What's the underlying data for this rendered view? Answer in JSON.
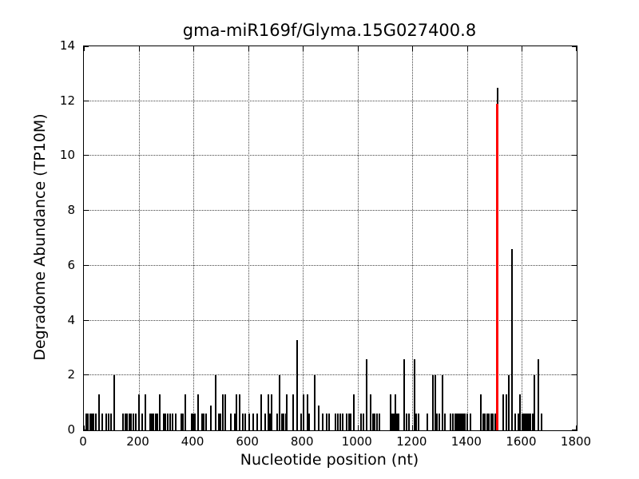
{
  "chart_data": {
    "type": "bar",
    "title": "gma-miR169f/Glyma.15G027400.8",
    "xlabel": "Nucleotide position (nt)",
    "ylabel": "Degradome Abundance (TP10M)",
    "xlim": [
      0,
      1800
    ],
    "ylim": [
      0,
      14
    ],
    "xticks": [
      0,
      200,
      400,
      600,
      800,
      1000,
      1200,
      1400,
      1600,
      1800
    ],
    "yticks": [
      0,
      2,
      4,
      6,
      8,
      10,
      12,
      14
    ],
    "grid": "dotted",
    "bar_color": "#000000",
    "highlight_marker": {
      "x": 1508,
      "height": 11.9,
      "color": "#ff0000"
    },
    "bars": [
      [
        5,
        0.6
      ],
      [
        12,
        0.6
      ],
      [
        19,
        0.6
      ],
      [
        26,
        0.6
      ],
      [
        33,
        0.6
      ],
      [
        40,
        0.6
      ],
      [
        52,
        1.3
      ],
      [
        63,
        0.6
      ],
      [
        78,
        0.6
      ],
      [
        88,
        0.6
      ],
      [
        95,
        0.6
      ],
      [
        108,
        2.0
      ],
      [
        141,
        0.6
      ],
      [
        148,
        0.6
      ],
      [
        155,
        0.6
      ],
      [
        162,
        0.6
      ],
      [
        169,
        0.6
      ],
      [
        178,
        0.6
      ],
      [
        186,
        0.6
      ],
      [
        198,
        1.3
      ],
      [
        210,
        0.6
      ],
      [
        222,
        1.3
      ],
      [
        238,
        0.6
      ],
      [
        245,
        0.6
      ],
      [
        252,
        0.6
      ],
      [
        259,
        0.6
      ],
      [
        266,
        0.6
      ],
      [
        274,
        1.3
      ],
      [
        288,
        0.6
      ],
      [
        296,
        0.6
      ],
      [
        304,
        0.6
      ],
      [
        312,
        0.6
      ],
      [
        322,
        0.6
      ],
      [
        332,
        0.6
      ],
      [
        353,
        0.6
      ],
      [
        360,
        0.6
      ],
      [
        368,
        1.3
      ],
      [
        390,
        0.6
      ],
      [
        397,
        0.6
      ],
      [
        404,
        0.6
      ],
      [
        414,
        1.3
      ],
      [
        428,
        0.6
      ],
      [
        436,
        0.6
      ],
      [
        444,
        0.6
      ],
      [
        461,
        0.9
      ],
      [
        478,
        2.0
      ],
      [
        490,
        0.6
      ],
      [
        497,
        0.6
      ],
      [
        505,
        1.3
      ],
      [
        513,
        1.3
      ],
      [
        534,
        0.6
      ],
      [
        548,
        0.6
      ],
      [
        554,
        1.3
      ],
      [
        566,
        1.3
      ],
      [
        578,
        0.6
      ],
      [
        586,
        0.6
      ],
      [
        601,
        0.6
      ],
      [
        616,
        0.6
      ],
      [
        630,
        0.6
      ],
      [
        645,
        1.3
      ],
      [
        659,
        0.6
      ],
      [
        670,
        1.3
      ],
      [
        676,
        0.6
      ],
      [
        682,
        1.3
      ],
      [
        703,
        0.6
      ],
      [
        712,
        2.0
      ],
      [
        720,
        0.6
      ],
      [
        727,
        0.6
      ],
      [
        734,
        0.6
      ],
      [
        738,
        1.3
      ],
      [
        761,
        1.3
      ],
      [
        776,
        3.3
      ],
      [
        790,
        0.6
      ],
      [
        799,
        1.3
      ],
      [
        814,
        1.3
      ],
      [
        820,
        0.6
      ],
      [
        840,
        2.0
      ],
      [
        855,
        0.9
      ],
      [
        869,
        0.6
      ],
      [
        884,
        0.6
      ],
      [
        893,
        0.6
      ],
      [
        916,
        0.6
      ],
      [
        925,
        0.6
      ],
      [
        934,
        0.6
      ],
      [
        942,
        0.6
      ],
      [
        957,
        0.6
      ],
      [
        965,
        0.6
      ],
      [
        972,
        0.6
      ],
      [
        983,
        1.3
      ],
      [
        1009,
        0.6
      ],
      [
        1018,
        0.6
      ],
      [
        1030,
        2.6
      ],
      [
        1043,
        1.3
      ],
      [
        1053,
        0.6
      ],
      [
        1060,
        0.6
      ],
      [
        1068,
        0.6
      ],
      [
        1076,
        0.6
      ],
      [
        1117,
        1.3
      ],
      [
        1123,
        0.6
      ],
      [
        1129,
        0.6
      ],
      [
        1135,
        1.3
      ],
      [
        1141,
        0.6
      ],
      [
        1147,
        0.6
      ],
      [
        1167,
        2.6
      ],
      [
        1176,
        0.6
      ],
      [
        1184,
        0.6
      ],
      [
        1205,
        2.6
      ],
      [
        1212,
        0.6
      ],
      [
        1219,
        0.6
      ],
      [
        1251,
        0.6
      ],
      [
        1272,
        2.0
      ],
      [
        1281,
        2.0
      ],
      [
        1288,
        0.6
      ],
      [
        1295,
        0.6
      ],
      [
        1307,
        2.0
      ],
      [
        1316,
        0.6
      ],
      [
        1336,
        0.6
      ],
      [
        1345,
        0.6
      ],
      [
        1353,
        0.6
      ],
      [
        1359,
        0.6
      ],
      [
        1365,
        0.6
      ],
      [
        1371,
        0.6
      ],
      [
        1377,
        0.6
      ],
      [
        1383,
        0.6
      ],
      [
        1390,
        0.6
      ],
      [
        1397,
        0.6
      ],
      [
        1409,
        0.6
      ],
      [
        1447,
        1.3
      ],
      [
        1456,
        0.6
      ],
      [
        1463,
        0.6
      ],
      [
        1470,
        0.6
      ],
      [
        1477,
        0.6
      ],
      [
        1484,
        0.6
      ],
      [
        1491,
        0.6
      ],
      [
        1500,
        0.6
      ],
      [
        1508,
        12.5
      ],
      [
        1529,
        1.3
      ],
      [
        1540,
        1.3
      ],
      [
        1549,
        2.0
      ],
      [
        1561,
        6.6
      ],
      [
        1572,
        0.6
      ],
      [
        1584,
        0.6
      ],
      [
        1590,
        1.3
      ],
      [
        1598,
        0.6
      ],
      [
        1604,
        0.6
      ],
      [
        1610,
        0.6
      ],
      [
        1616,
        0.6
      ],
      [
        1622,
        0.6
      ],
      [
        1628,
        0.6
      ],
      [
        1636,
        0.6
      ],
      [
        1642,
        2.0
      ],
      [
        1657,
        2.6
      ],
      [
        1668,
        0.6
      ]
    ]
  }
}
